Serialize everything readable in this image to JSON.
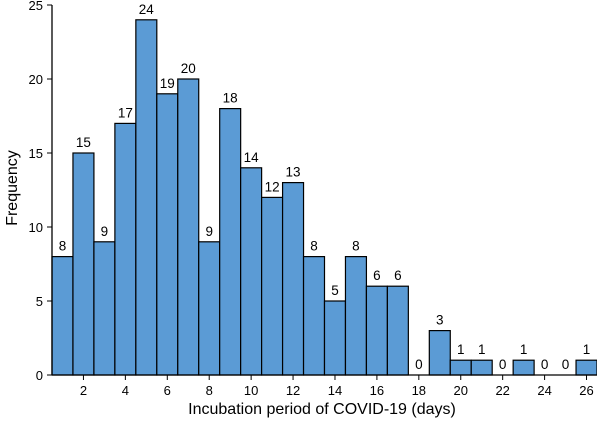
{
  "chart_data": {
    "type": "bar",
    "title": "",
    "xlabel": "Incubation period of COVID-19 (days)",
    "ylabel": "Frequency",
    "x": [
      1,
      2,
      3,
      4,
      5,
      6,
      7,
      8,
      9,
      10,
      11,
      12,
      13,
      14,
      15,
      16,
      17,
      18,
      19,
      20,
      21,
      22,
      23,
      24,
      25,
      26
    ],
    "values": [
      8,
      15,
      9,
      17,
      24,
      19,
      20,
      9,
      18,
      14,
      12,
      13,
      8,
      5,
      8,
      6,
      6,
      0,
      3,
      1,
      1,
      0,
      1,
      0,
      0,
      1
    ],
    "xlim": [
      0.5,
      26.5
    ],
    "ylim": [
      0,
      25
    ],
    "xticks": [
      2,
      4,
      6,
      8,
      10,
      12,
      14,
      16,
      18,
      20,
      22,
      24,
      26
    ],
    "yticks": [
      0,
      5,
      10,
      15,
      20,
      25
    ],
    "bar_color": "#5b9bd5",
    "bar_edge_color": "#000000",
    "grid": false,
    "data_labels": true
  }
}
